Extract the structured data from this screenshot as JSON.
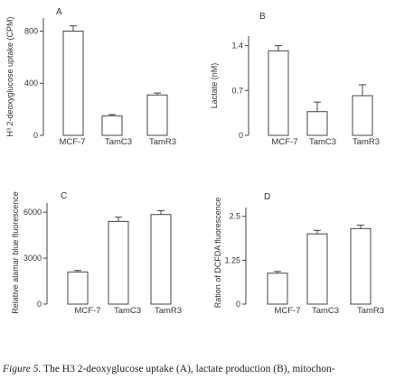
{
  "caption": {
    "label": "Figure 5.",
    "text": "The H3 2-deoxyglucose uptake (A), lactate production (B), mitochon-"
  },
  "chart_data": [
    {
      "type": "bar",
      "panel_label": "A",
      "ylabel": "H³ 2-deoxyglucose uptake (CPM)",
      "categories": [
        "MCF-7",
        "TamC3",
        "TamR3"
      ],
      "values": [
        800,
        150,
        310
      ],
      "errors": [
        40,
        10,
        15
      ],
      "ylim": [
        0,
        900
      ],
      "yticks": [
        0,
        400,
        800
      ],
      "ytick_labels": [
        "0",
        "400",
        "800"
      ]
    },
    {
      "type": "bar",
      "panel_label": "B",
      "ylabel": "Lactate (nM)",
      "categories": [
        "MCF-7",
        "TamC3",
        "TamR3"
      ],
      "values": [
        1.32,
        0.37,
        0.62
      ],
      "errors": [
        0.08,
        0.15,
        0.17
      ],
      "ylim": [
        0,
        1.55
      ],
      "yticks": [
        0,
        0.7,
        1.4
      ],
      "ytick_labels": [
        "0",
        "0.7",
        "1.4"
      ]
    },
    {
      "type": "bar",
      "panel_label": "C",
      "ylabel": "Relative alamar blue fluorescence",
      "categories": [
        "MCF-7",
        "TamC3",
        "TamR3"
      ],
      "values": [
        2100,
        5400,
        5850
      ],
      "errors": [
        100,
        280,
        250
      ],
      "ylim": [
        0,
        6600
      ],
      "yticks": [
        0,
        3000,
        6000
      ],
      "ytick_labels": [
        "0",
        "3000",
        "6000"
      ]
    },
    {
      "type": "bar",
      "panel_label": "D",
      "ylabel": "Ration of DCFDA fluorescence",
      "categories": [
        "MCF-7",
        "TamC3",
        "TamR3"
      ],
      "values": [
        0.88,
        2.0,
        2.15
      ],
      "errors": [
        0.05,
        0.1,
        0.1
      ],
      "ylim": [
        0,
        2.75
      ],
      "yticks": [
        0,
        1.25,
        2.5
      ],
      "ytick_labels": [
        "0",
        "1.25",
        "2.5"
      ]
    }
  ]
}
